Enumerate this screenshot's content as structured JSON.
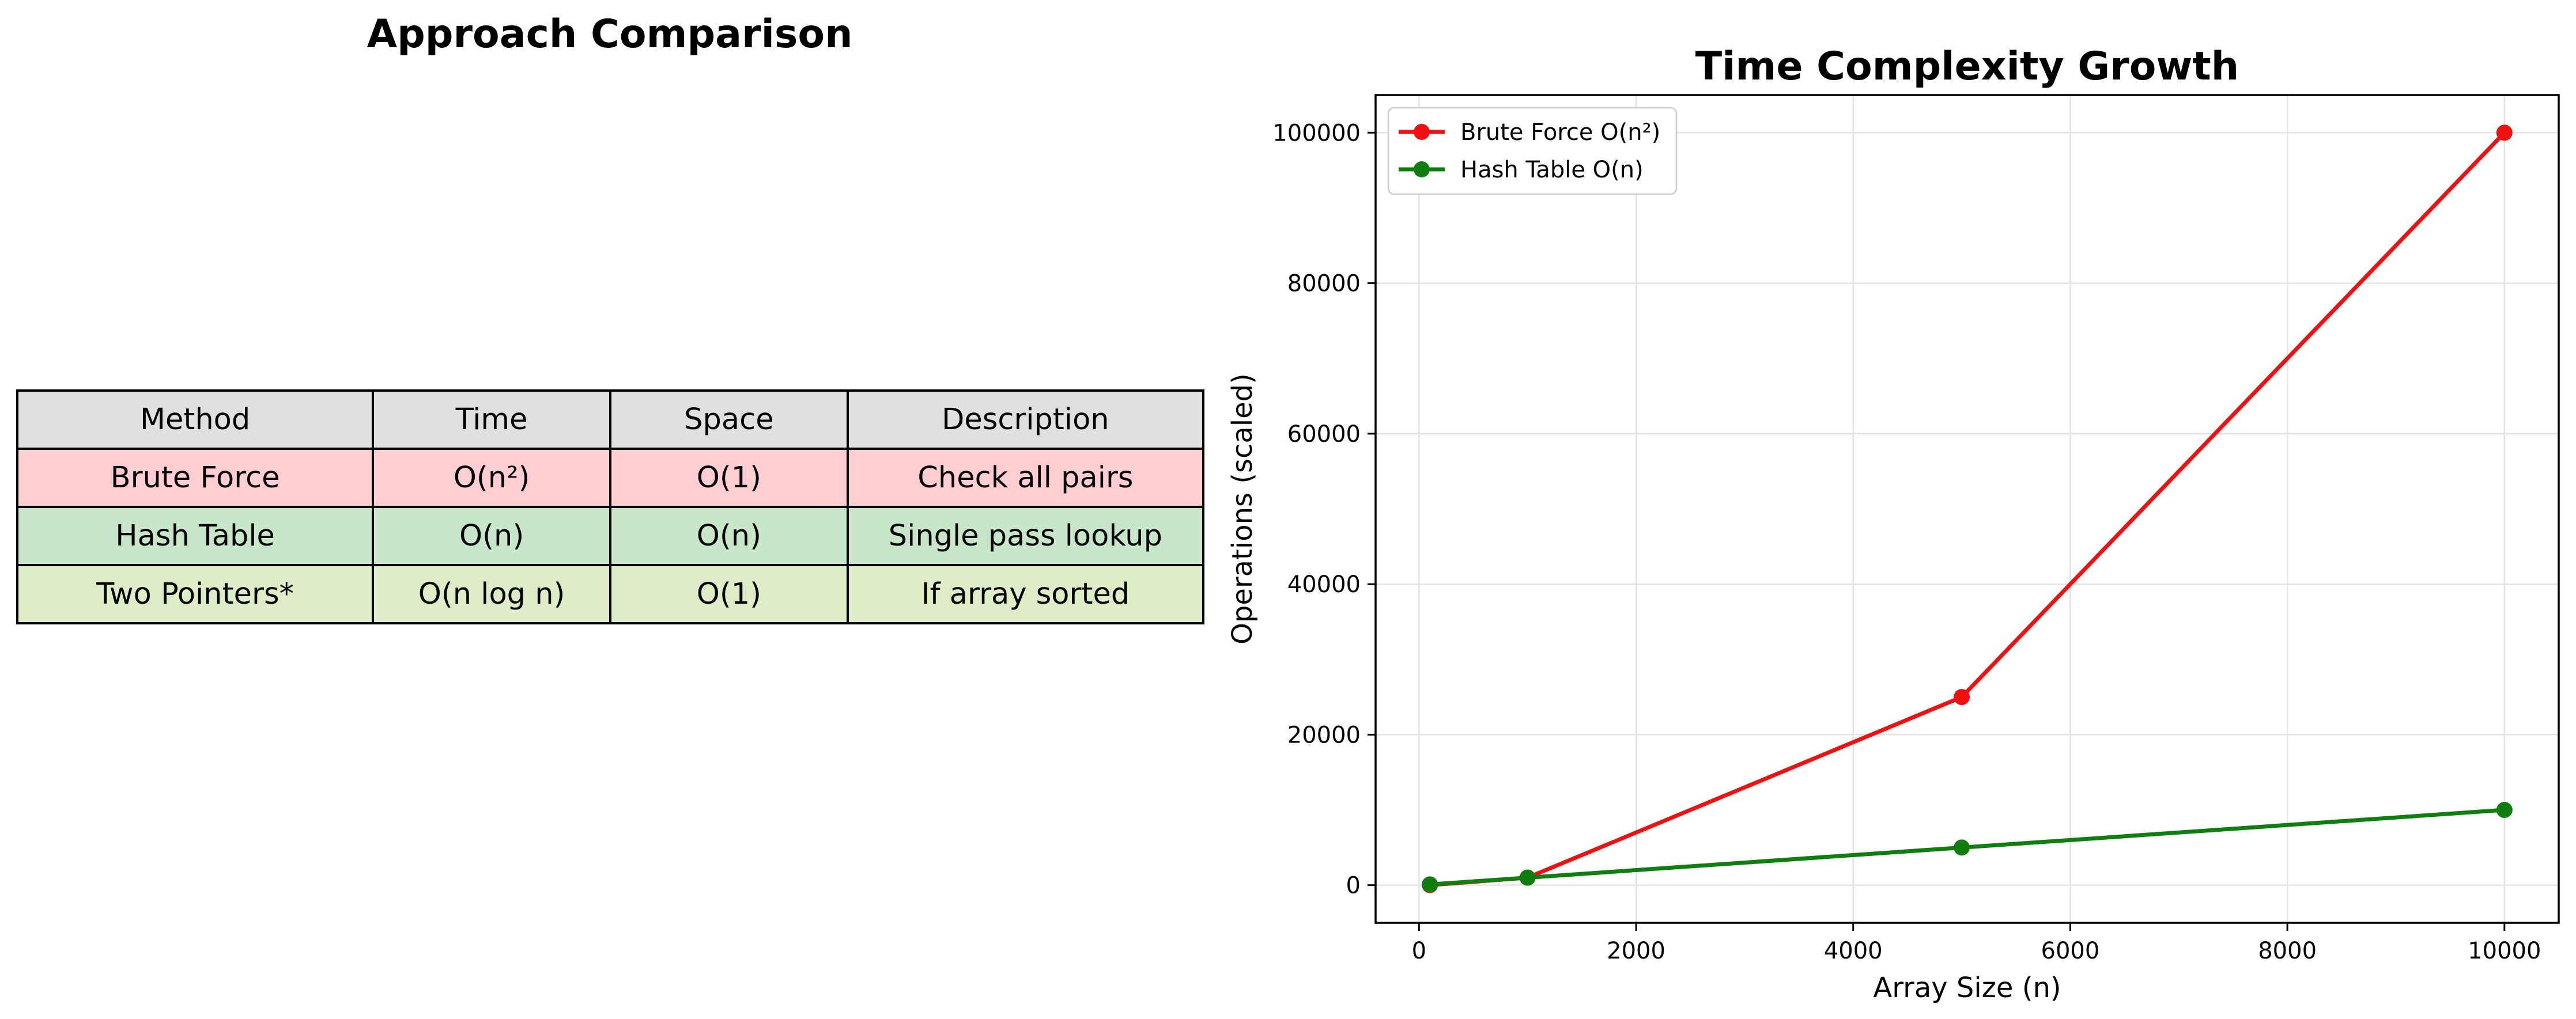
{
  "table": {
    "title": "Approach Comparison",
    "header": [
      "Method",
      "Time",
      "Space",
      "Description"
    ],
    "rows": [
      [
        "Brute Force",
        "O(n²)",
        "O(1)",
        "Check all pairs"
      ],
      [
        "Hash Table",
        "O(n)",
        "O(n)",
        "Single pass lookup"
      ],
      [
        "Two Pointers*",
        "O(n log n)",
        "O(1)",
        "If array sorted"
      ]
    ],
    "row_colors": [
      "#ffcdd2",
      "#c8e6c9",
      "#dcedc8"
    ],
    "header_color": "#e0e0e0"
  },
  "chart_data": {
    "type": "line",
    "title": "Time Complexity Growth",
    "xlabel": "Array Size (n)",
    "ylabel": "Operations (scaled)",
    "xlim": [
      -400,
      10500
    ],
    "ylim": [
      -5000,
      105000
    ],
    "xticks": [
      0,
      2000,
      4000,
      6000,
      8000,
      10000
    ],
    "yticks": [
      0,
      20000,
      40000,
      60000,
      80000,
      100000
    ],
    "grid": true,
    "legend_position": "upper-left",
    "x": [
      100,
      1000,
      5000,
      10000
    ],
    "series": [
      {
        "name": "Brute Force O(n²)",
        "color": "#ee1111",
        "values": [
          10,
          1000,
          25000,
          100000
        ]
      },
      {
        "name": "Hash Table O(n)",
        "color": "#0f7d0f",
        "values": [
          100,
          1000,
          5000,
          10000
        ]
      }
    ]
  }
}
